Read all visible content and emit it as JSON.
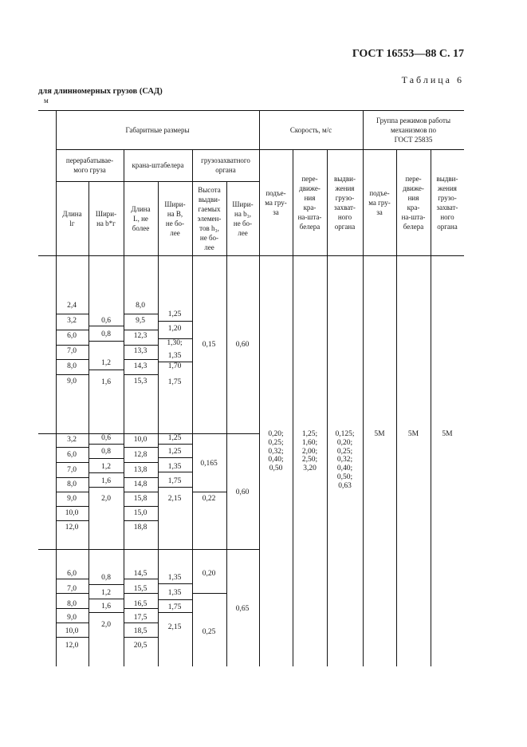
{
  "header": {
    "doc_ref": "ГОСТ 16553—88 С. 17",
    "table_label": "Таблица 6",
    "caption": "для длинномерных грузов (САД)",
    "unit": "м"
  },
  "table_head": {
    "dimensions": "Габаритные размеры",
    "speed": "Скорость, м/с",
    "group": "Группа режимов работы\nмеханизмов по\nГОСТ 25835",
    "cargo": "перерабатывае-\nмого груза",
    "crane": "крана-штабелера",
    "gripper": "грузозахватного\nоргана",
    "cargo_length": "Длина\nlг",
    "cargo_width": "Шири-\nна b*г",
    "crane_length": "Длина\nL, не\nболее",
    "crane_width": "Шири-\nна B,\nне бо-\nлее",
    "gripper_height": "Высота\nвыдви-\nгаемых\nэлемен-\nтов h₃,\nне бо-\nлее",
    "gripper_width": "Шири-\nна b₃,\nне бо-\nлее",
    "speed_lift": "подъе-\nма гру-\nза",
    "speed_travel": "пере-\nдвиже-\nния\nкра-\nна-шта-\nбелера",
    "speed_extend": "выдви-\nжения\nгрузо-\nзахват-\nного\nоргана",
    "group_lift": "подъе-\nма гру-\nза",
    "group_travel": "пере-\nдвиже-\nния\nкра-\nна-шта-\nбелера",
    "group_extend": "выдви-\nжения\nгрузо-\nзахват-\nного\nоргана"
  },
  "sections": [
    {
      "cargo_length": [
        "2,4",
        "3,2",
        "6,0",
        "7,0",
        "8,0",
        "9,0"
      ],
      "cargo_width": [
        "0,6",
        "0,8",
        "1,2",
        "1,6"
      ],
      "crane_length": [
        "8,0",
        "9,5",
        "12,3",
        "13,3",
        "14,3",
        "15,3"
      ],
      "crane_width": [
        "1,25",
        "1,20",
        "1,30;",
        "1,35",
        "1,70",
        "1,75"
      ],
      "gripper_height": [
        "0,15"
      ],
      "gripper_width": [
        "0,60"
      ]
    },
    {
      "cargo_length": [
        "3,2",
        "6,0",
        "7,0",
        "8,0",
        "9,0",
        "10,0",
        "12,0"
      ],
      "cargo_width": [
        "0,6",
        "0,8",
        "1,2",
        "1,6",
        "2,0"
      ],
      "crane_length": [
        "10,0",
        "12,8",
        "13,8",
        "14,8",
        "15,8",
        "15,0",
        "18,8"
      ],
      "crane_width": [
        "1,25",
        "1,25",
        "1,35",
        "1,75",
        "2,15"
      ],
      "gripper_height": [
        "0,165",
        "0,22"
      ],
      "gripper_width": [
        "0,60"
      ]
    },
    {
      "cargo_length": [
        "6,0",
        "7,0",
        "8,0",
        "9,0",
        "10,0",
        "12,0"
      ],
      "cargo_width": [
        "0,8",
        "1,2",
        "1,6",
        "2,0"
      ],
      "crane_length": [
        "14,5",
        "15,5",
        "16,5",
        "17,5",
        "18,5",
        "20,5"
      ],
      "crane_width": [
        "1,35",
        "1,35",
        "1,75",
        "2,15"
      ],
      "gripper_height": [
        "0,20",
        "0,25"
      ],
      "gripper_width": [
        "0,65"
      ]
    }
  ],
  "speed": {
    "lift": "0,20;\n0,25;\n0,32;\n0,40;\n0,50",
    "travel": "1,25;\n1,60;\n2,00;\n2,50;\n3,20",
    "extend": "0,125;\n0,20;\n0,25;\n0,32;\n0,40;\n0,50;\n0,63"
  },
  "group": {
    "lift": "5M",
    "travel": "5M",
    "extend": "5M"
  }
}
